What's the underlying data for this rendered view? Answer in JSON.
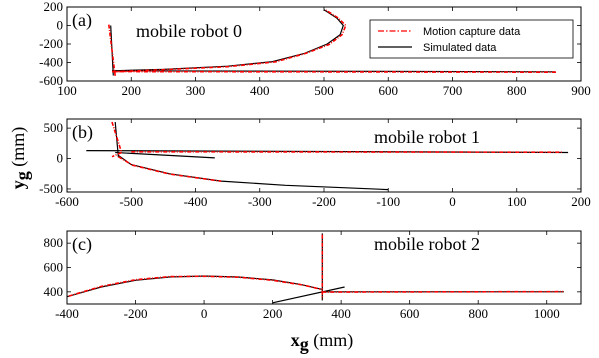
{
  "colors": {
    "motion_capture": "#ff0000",
    "simulated": "#000000"
  },
  "legend": {
    "motion_capture_label": "Motion capture data",
    "simulated_label": "Simulated data"
  },
  "axes": {
    "ylabel_var": "y",
    "ylabel_sub": "g",
    "ylabel_unit": " (mm)",
    "xlabel_var": "x",
    "xlabel_sub": "g",
    "xlabel_unit": " (mm)"
  },
  "chart_data": [
    {
      "type": "line",
      "letter": "(a)",
      "title": "mobile robot 0",
      "xlim": [
        100,
        900
      ],
      "ylim": [
        -600,
        200
      ],
      "xticks": [
        100,
        200,
        300,
        400,
        500,
        600,
        700,
        800,
        900
      ],
      "yticks": [
        -600,
        -400,
        -200,
        0,
        200
      ],
      "series": [
        {
          "name": "Simulated data",
          "segments": [
            [
              [
                170,
                -490
              ],
              [
                250,
                -475
              ],
              [
                350,
                -440
              ],
              [
                420,
                -390
              ],
              [
                470,
                -300
              ],
              [
                505,
                -200
              ],
              [
                525,
                -100
              ],
              [
                530,
                0
              ],
              [
                520,
                80
              ],
              [
                500,
                170
              ]
            ],
            [
              [
                170,
                -490
              ],
              [
                860,
                -500
              ]
            ],
            [
              [
                168,
                0
              ],
              [
                172,
                -540
              ]
            ]
          ]
        },
        {
          "name": "Motion capture data",
          "segments": [
            [
              [
                172,
                -500
              ],
              [
                250,
                -478
              ],
              [
                350,
                -445
              ],
              [
                425,
                -392
              ],
              [
                472,
                -300
              ],
              [
                508,
                -205
              ],
              [
                528,
                -100
              ],
              [
                534,
                0
              ],
              [
                522,
                82
              ],
              [
                503,
                165
              ]
            ],
            [
              [
                170,
                -498
              ],
              [
                862,
                -505
              ]
            ],
            [
              [
                165,
                10
              ],
              [
                175,
                -545
              ]
            ]
          ]
        }
      ]
    },
    {
      "type": "line",
      "letter": "(b)",
      "title": "mobile robot 1",
      "xlim": [
        -600,
        200
      ],
      "ylim": [
        -550,
        650
      ],
      "xticks": [
        -600,
        -500,
        -400,
        -300,
        -200,
        -100,
        0,
        100,
        200
      ],
      "yticks": [
        -500,
        0,
        500
      ],
      "series": [
        {
          "name": "Simulated data",
          "segments": [
            [
              [
                -570,
                130
              ],
              [
                180,
                100
              ]
            ],
            [
              [
                -525,
                100
              ],
              [
                -370,
                10
              ]
            ],
            [
              [
                -520,
                50
              ],
              [
                -500,
                -100
              ],
              [
                -440,
                -250
              ],
              [
                -360,
                -370
              ],
              [
                -260,
                -440
              ],
              [
                -170,
                -480
              ],
              [
                -100,
                -510
              ]
            ],
            [
              [
                -525,
                600
              ],
              [
                -520,
                20
              ]
            ]
          ]
        },
        {
          "name": "Motion capture data",
          "segments": [
            [
              [
                -530,
                600
              ],
              [
                -515,
                100
              ],
              [
                -530,
                30
              ]
            ],
            [
              [
                -520,
                30
              ],
              [
                -498,
                -110
              ],
              [
                -440,
                -255
              ],
              [
                -360,
                -372
              ]
            ],
            [
              [
                -500,
                110
              ],
              [
                170,
                105
              ]
            ]
          ]
        }
      ]
    },
    {
      "type": "line",
      "letter": "(c)",
      "title": "mobile robot 2",
      "xlim": [
        -400,
        1100
      ],
      "ylim": [
        300,
        900
      ],
      "xticks": [
        -400,
        -200,
        0,
        200,
        400,
        600,
        800,
        1000
      ],
      "yticks": [
        400,
        600,
        800
      ],
      "series": [
        {
          "name": "Simulated data",
          "segments": [
            [
              [
                -400,
                360
              ],
              [
                -300,
                440
              ],
              [
                -200,
                495
              ],
              [
                -100,
                522
              ],
              [
                0,
                530
              ],
              [
                100,
                522
              ],
              [
                200,
                498
              ],
              [
                280,
                462
              ],
              [
                345,
                420
              ]
            ],
            [
              [
                345,
                400
              ],
              [
                1050,
                400
              ]
            ],
            [
              [
                200,
                310
              ],
              [
                410,
                440
              ]
            ],
            [
              [
                345,
                880
              ],
              [
                345,
                330
              ]
            ]
          ]
        },
        {
          "name": "Motion capture data",
          "segments": [
            [
              [
                -395,
                365
              ],
              [
                -300,
                445
              ],
              [
                -200,
                500
              ],
              [
                -100,
                525
              ],
              [
                0,
                528
              ],
              [
                100,
                520
              ],
              [
                200,
                495
              ],
              [
                290,
                455
              ],
              [
                345,
                418
              ]
            ],
            [
              [
                345,
                398
              ],
              [
                1048,
                402
              ]
            ],
            [
              [
                345,
                870
              ],
              [
                345,
                340
              ]
            ]
          ]
        }
      ]
    }
  ]
}
